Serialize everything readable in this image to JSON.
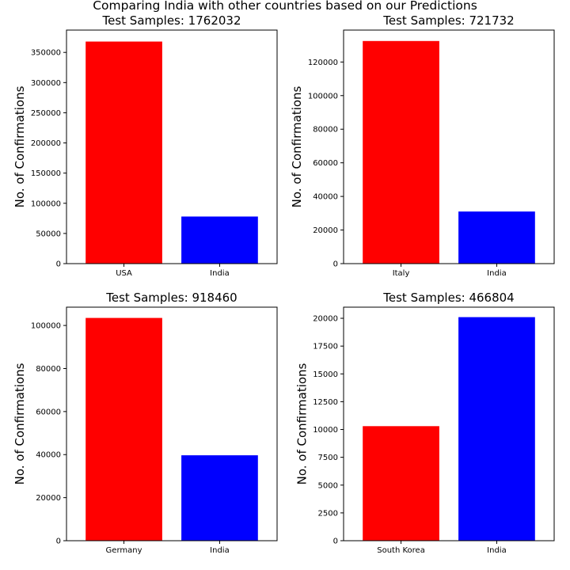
{
  "suptitle": "Comparing India with other countries based on our Predictions",
  "chart_data": [
    {
      "type": "bar",
      "title": "Test Samples: 1762032",
      "ylabel": "No. of Confirmations",
      "xlabel": "",
      "categories": [
        "USA",
        "India"
      ],
      "values": [
        368000,
        78000
      ],
      "colors": [
        "#ff0000",
        "#0000ff"
      ],
      "ylim": [
        0,
        387000
      ],
      "yticks": [
        0,
        50000,
        100000,
        150000,
        200000,
        250000,
        300000,
        350000
      ],
      "ytick_labels": [
        "0",
        "50000",
        "100000",
        "150000",
        "200000",
        "250000",
        "300000",
        "350000"
      ]
    },
    {
      "type": "bar",
      "title": "Test Samples: 721732",
      "ylabel": "No. of Confirmations",
      "xlabel": "",
      "categories": [
        "Italy",
        "India"
      ],
      "values": [
        132500,
        31000
      ],
      "colors": [
        "#ff0000",
        "#0000ff"
      ],
      "ylim": [
        0,
        139000
      ],
      "yticks": [
        0,
        20000,
        40000,
        60000,
        80000,
        100000,
        120000
      ],
      "ytick_labels": [
        "0",
        "20000",
        "40000",
        "60000",
        "80000",
        "100000",
        "120000"
      ]
    },
    {
      "type": "bar",
      "title": "Test Samples: 918460",
      "ylabel": "No. of Confirmations",
      "xlabel": "",
      "categories": [
        "Germany",
        "India"
      ],
      "values": [
        103500,
        39700
      ],
      "colors": [
        "#ff0000",
        "#0000ff"
      ],
      "ylim": [
        0,
        108500
      ],
      "yticks": [
        0,
        20000,
        40000,
        60000,
        80000,
        100000
      ],
      "ytick_labels": [
        "0",
        "20000",
        "40000",
        "60000",
        "80000",
        "100000"
      ]
    },
    {
      "type": "bar",
      "title": "Test Samples: 466804",
      "ylabel": "No. of Confirmations",
      "xlabel": "",
      "categories": [
        "South Korea",
        "India"
      ],
      "values": [
        10300,
        20100
      ],
      "colors": [
        "#ff0000",
        "#0000ff"
      ],
      "ylim": [
        0,
        21000
      ],
      "yticks": [
        0,
        2500,
        5000,
        7500,
        10000,
        12500,
        15000,
        17500,
        20000
      ],
      "ytick_labels": [
        "0",
        "2500",
        "5000",
        "7500",
        "10000",
        "12500",
        "15000",
        "17500",
        "20000"
      ]
    }
  ]
}
